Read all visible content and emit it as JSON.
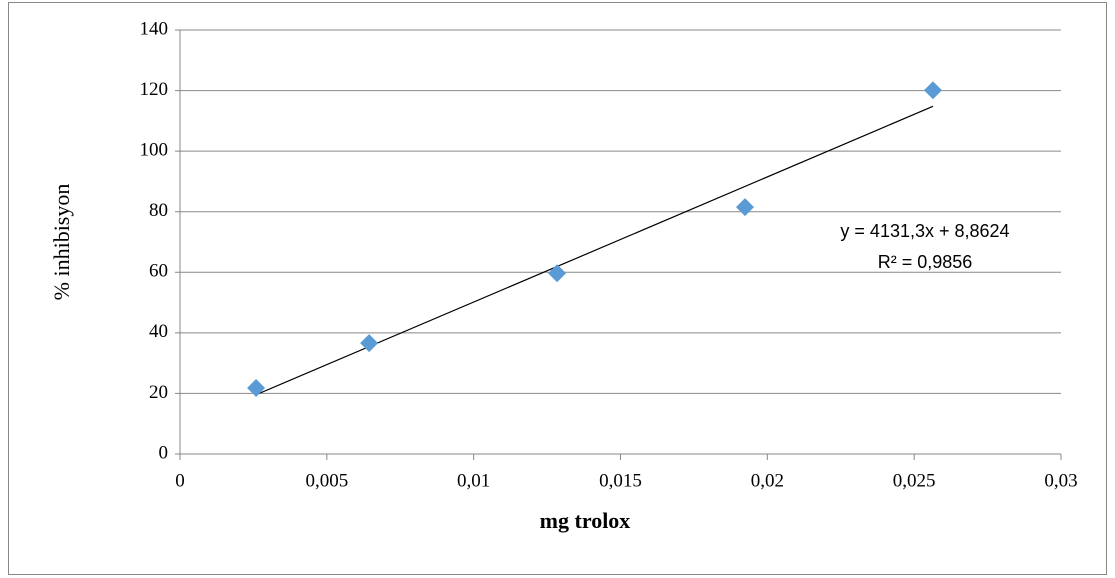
{
  "chart_data": {
    "type": "scatter",
    "x_label": "mg trolox",
    "y_label": "% inhibisyon",
    "x": [
      0.00259,
      0.00644,
      0.01284,
      0.01924,
      0.02564
    ],
    "series": [
      {
        "color": "#5b9bd5",
        "values": [
          21.8,
          36.6,
          59.7,
          81.5,
          120.1
        ]
      }
    ],
    "xlim": [
      0,
      0.03
    ],
    "xticks": [
      0,
      {
        "value": 0.005,
        "label": "0,005"
      },
      {
        "value": 0.01,
        "label": "0,01"
      },
      {
        "value": 0.015,
        "label": "0,015"
      },
      {
        "value": 0.02,
        "label": "0,02"
      },
      {
        "value": 0.025,
        "label": "0,025"
      },
      {
        "value": 0.03,
        "label": "0,03"
      }
    ],
    "ylim": [
      0,
      140
    ],
    "yticks": [
      0,
      20,
      40,
      60,
      80,
      100,
      120,
      140
    ],
    "grid": true,
    "trendline": {
      "slope": 4131.3,
      "intercept": 8.8624,
      "color": "#000000",
      "equation": "y = 4131,3x + 8,8624",
      "r_squared": "R² = 0,9856"
    }
  }
}
